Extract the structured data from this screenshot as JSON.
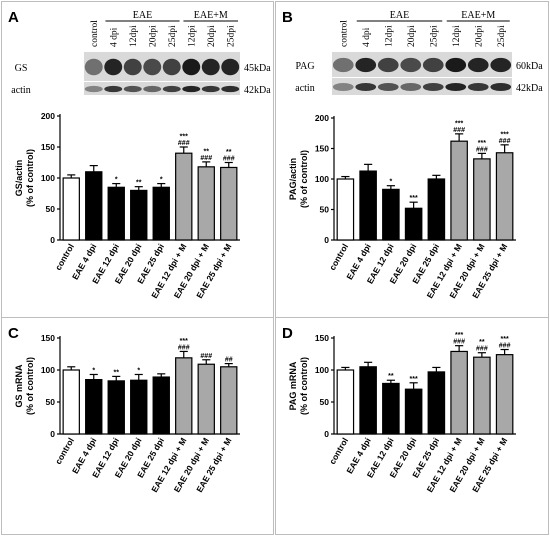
{
  "colors": {
    "control": "#ffffff",
    "eae": "#000000",
    "eae_m": "#a8a8a8",
    "band": "#1a1a1a"
  },
  "blots": [
    {
      "letter": "A",
      "lane_labels": [
        "control",
        "4 dpi",
        "12dpi",
        "20dpi",
        "25dpi",
        "12dpi",
        "20dpi",
        "25dpi"
      ],
      "group_eae": "EAE",
      "group_eae_m": "EAE+M",
      "rows": [
        {
          "name": "GS",
          "kda": "45kDa"
        },
        {
          "name": "actin",
          "kda": "42kDa"
        }
      ]
    },
    {
      "letter": "B",
      "lane_labels": [
        "control",
        "4 dpi",
        "12dpi",
        "20dpi",
        "25dpi",
        "12dpi",
        "20dpi",
        "25dpi"
      ],
      "group_eae": "EAE",
      "group_eae_m": "EAE+M",
      "rows": [
        {
          "name": "PAG",
          "kda": "60kDa"
        },
        {
          "name": "actin",
          "kda": "42kDa"
        }
      ]
    }
  ],
  "chart_data": [
    {
      "panel": "A",
      "type": "bar",
      "categories": [
        "control",
        "EAE 4 dpi",
        "EAE 12 dpi",
        "EAE 20 dpi",
        "EAE 25 dpi",
        "EAE 12 dpi + M",
        "EAE 20 dpi + M",
        "EAE 25 dpi + M"
      ],
      "values": [
        100,
        110,
        85,
        80,
        85,
        140,
        118,
        117
      ],
      "errors": [
        5,
        10,
        6,
        6,
        6,
        10,
        8,
        8
      ],
      "significance": [
        "",
        "",
        "*",
        "**",
        "*",
        "***|###",
        "**|###",
        "**|###"
      ],
      "fill_groups": [
        "control",
        "eae",
        "eae",
        "eae",
        "eae",
        "eae_m",
        "eae_m",
        "eae_m"
      ],
      "ylabel": "GS/actin\n(% of control)",
      "ylim": [
        0,
        200
      ],
      "yticks": [
        "0",
        "50",
        "100",
        "150",
        "200"
      ]
    },
    {
      "panel": "B",
      "type": "bar",
      "categories": [
        "control",
        "EAE 4 dpi",
        "EAE 12 dpi",
        "EAE 20 dpi",
        "EAE 25 dpi",
        "EAE 12 dpi + M",
        "EAE 20 dpi + M",
        "EAE 25 dpi + M"
      ],
      "values": [
        100,
        113,
        83,
        52,
        100,
        162,
        133,
        143
      ],
      "errors": [
        4,
        11,
        6,
        10,
        6,
        12,
        9,
        13
      ],
      "significance": [
        "",
        "",
        "*",
        "***",
        "",
        "***|###",
        "***|###",
        "***|###"
      ],
      "fill_groups": [
        "control",
        "eae",
        "eae",
        "eae",
        "eae",
        "eae_m",
        "eae_m",
        "eae_m"
      ],
      "ylabel": "PAG/actin\n(% of control)",
      "ylim": [
        0,
        200
      ],
      "yticks": [
        "0",
        "50",
        "100",
        "150",
        "200"
      ]
    },
    {
      "panel": "C",
      "type": "bar",
      "categories": [
        "control",
        "EAE 4 dpi",
        "EAE 12 dpi",
        "EAE 20 dpi",
        "EAE 25 dpi",
        "EAE 12 dpi + M",
        "EAE 20 dpi + M",
        "EAE 25 dpi + M"
      ],
      "values": [
        100,
        85,
        83,
        84,
        89,
        119,
        109,
        105
      ],
      "errors": [
        5,
        8,
        7,
        9,
        5,
        10,
        7,
        5
      ],
      "significance": [
        "",
        "*",
        "**",
        "*",
        "",
        "***|###",
        "###",
        "##"
      ],
      "fill_groups": [
        "control",
        "eae",
        "eae",
        "eae",
        "eae",
        "eae_m",
        "eae_m",
        "eae_m"
      ],
      "ylabel": "GS mRNA\n(% of control)",
      "ylim": [
        0,
        150
      ],
      "yticks": [
        "0",
        "50",
        "100",
        "150"
      ]
    },
    {
      "panel": "D",
      "type": "bar",
      "categories": [
        "control",
        "EAE 4 dpi",
        "EAE 12 dpi",
        "EAE 20 dpi",
        "EAE 25 dpi",
        "EAE 12 dpi + M",
        "EAE 20 dpi + M",
        "EAE 25 dpi + M"
      ],
      "values": [
        100,
        105,
        79,
        70,
        97,
        129,
        120,
        124
      ],
      "errors": [
        4,
        7,
        5,
        10,
        7,
        9,
        7,
        8
      ],
      "significance": [
        "",
        "",
        "**",
        "***",
        "",
        "***|###",
        "**|###",
        "***|###"
      ],
      "fill_groups": [
        "control",
        "eae",
        "eae",
        "eae",
        "eae",
        "eae_m",
        "eae_m",
        "eae_m"
      ],
      "ylabel": "PAG mRNA\n(% of control)",
      "ylim": [
        0,
        150
      ],
      "yticks": [
        "0",
        "50",
        "100",
        "150"
      ]
    }
  ]
}
